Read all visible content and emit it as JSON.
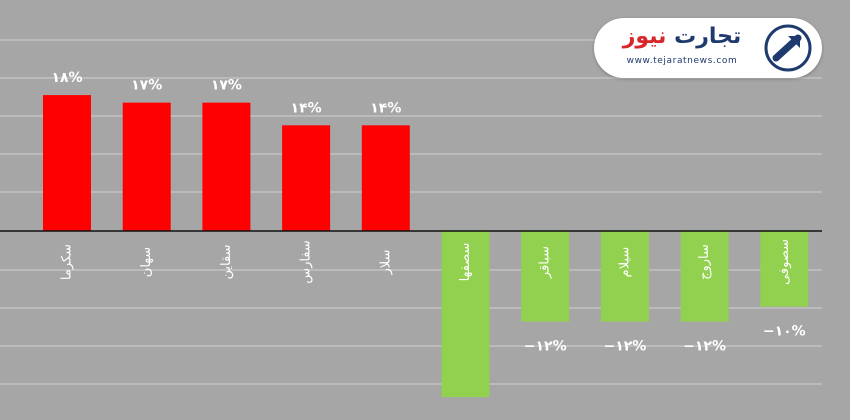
{
  "brand": {
    "name_part1": "تجارت",
    "name_part2": "نیوز",
    "url": "www.tejaratnews.com",
    "colors": {
      "primary": "#1e3a6e",
      "accent": "#d8262a"
    }
  },
  "chart_data": {
    "type": "bar",
    "title": "",
    "xlabel": "",
    "ylabel": "",
    "grid": true,
    "legend": "none",
    "ylim": [
      -22,
      25
    ],
    "categories": [
      "سکرما",
      "سهان",
      "سقاین",
      "سفارس",
      "سلار",
      "سصفها",
      "سباقر",
      "سیلام",
      "ساروج",
      "سصوفی"
    ],
    "values": [
      18,
      17,
      17,
      14,
      14,
      -22,
      -12,
      -12,
      -12,
      -10
    ],
    "value_labels": [
      "۱۸%",
      "۱۷%",
      "۱۷%",
      "۱۴%",
      "۱۴%",
      "",
      "−۱۲%",
      "−۱۲%",
      "−۱۲%",
      "−۱۰%"
    ],
    "colors": {
      "positive": "#ff0000",
      "negative": "#92d050",
      "background": "#a6a6a6",
      "grid": "#d0d0d0",
      "axis": "#111111"
    }
  }
}
